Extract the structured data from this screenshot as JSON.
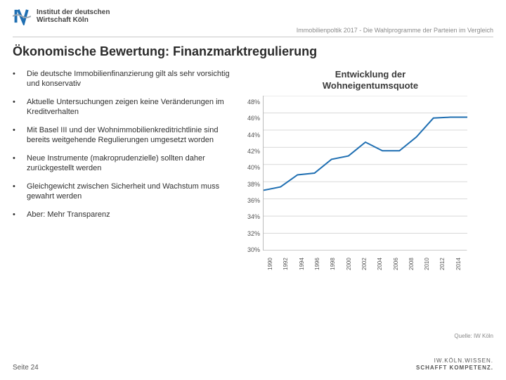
{
  "header": {
    "org_line1": "Institut der deutschen",
    "org_line2": "Wirtschaft Köln",
    "doc_line": "Immobilienpoltik 2017 - Die Wahlprogramme der Parteien im Vergleich"
  },
  "title": "Ökonomische Bewertung: Finanzmarktregulierung",
  "bullets": [
    "Die deutsche Immobilienfinanzierung gilt als sehr vorsichtig und konservativ",
    "Aktuelle Untersuchungen zeigen keine Veränderungen im Kreditverhalten",
    "Mit Basel III und der Wohnimmobilienkreditrichtlinie sind bereits weitgehende Regulierungen umgesetzt worden",
    "Neue Instrumente (makroprudenzielle) sollten daher zurückgestellt werden",
    "Gleichgewicht zwischen Sicherheit und Wachstum muss gewahrt werden",
    "Aber: Mehr Transparenz"
  ],
  "chart": {
    "title_line1": "Entwicklung der",
    "title_line2": "Wohneigentumsquote",
    "type": "line",
    "x_labels": [
      "1990",
      "1992",
      "1994",
      "1996",
      "1998",
      "2000",
      "2002",
      "2004",
      "2006",
      "2008",
      "2010",
      "2012",
      "2014"
    ],
    "y_labels": [
      "48%",
      "46%",
      "44%",
      "42%",
      "40%",
      "38%",
      "36%",
      "34%",
      "32%",
      "30%"
    ],
    "ylim": [
      30,
      48
    ],
    "series": [
      {
        "color": "#1f6fb2",
        "values": [
          37.0,
          37.4,
          38.8,
          39.0,
          40.6,
          41.0,
          42.6,
          41.6,
          41.6,
          43.2,
          45.4,
          45.5,
          45.5
        ]
      }
    ],
    "grid_color": "#d9d9d9",
    "background": "#ffffff",
    "line_width": 2,
    "label_fontsize": 9
  },
  "source": "Quelle: IW Köln",
  "footer": {
    "page": "Seite 24",
    "tag_line1": "IW.KÖLN.WISSEN.",
    "tag_line2": "SCHAFFT KOMPETENZ."
  },
  "colors": {
    "text": "#3a3a3a",
    "muted": "#8a8a8a",
    "rule": "#c8c8c8",
    "accent": "#1f6fb2"
  }
}
